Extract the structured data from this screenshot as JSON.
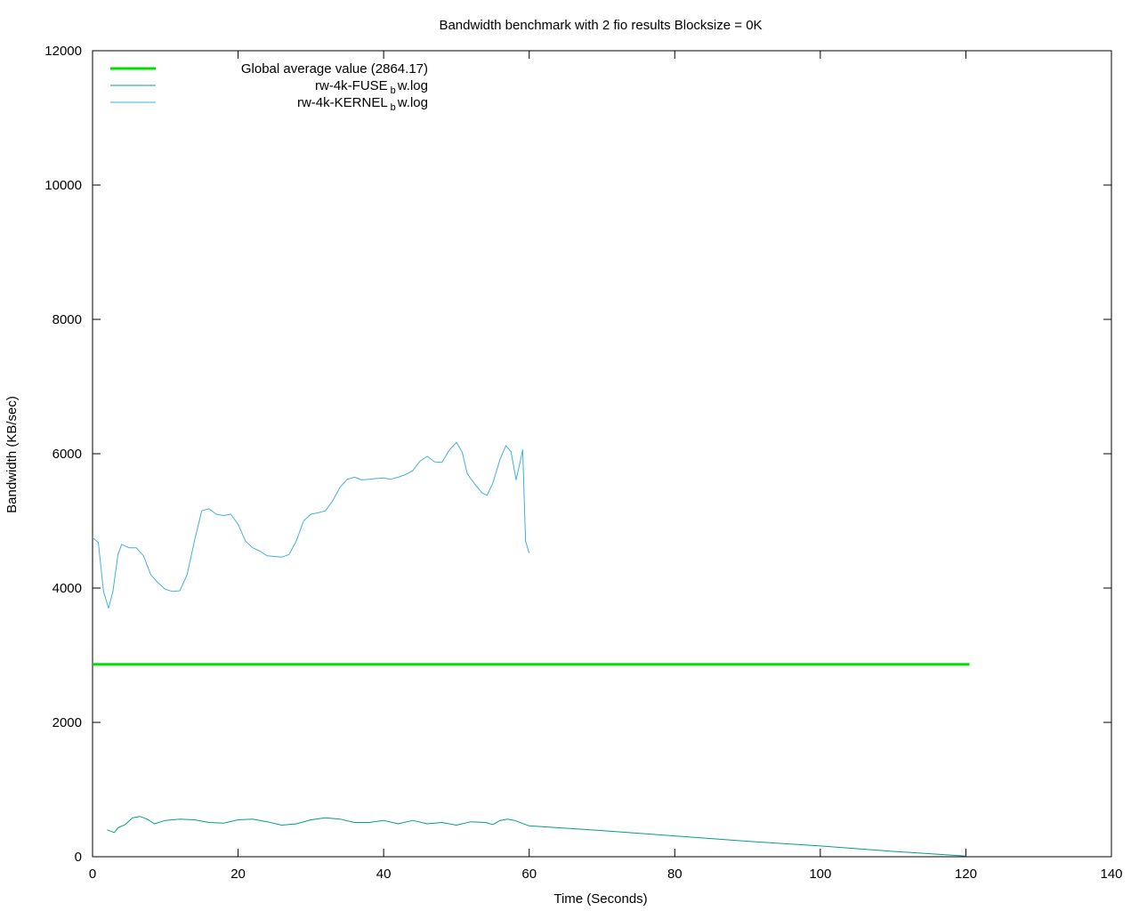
{
  "chart_data": {
    "type": "line",
    "title": "Bandwidth benchmark with 2 fio results Blocksize = 0K",
    "xlabel": "Time (Seconds)",
    "ylabel": "Bandwidth (KB/sec)",
    "xlim": [
      0,
      140
    ],
    "ylim": [
      0,
      12000
    ],
    "x_ticks": [
      0,
      20,
      40,
      60,
      80,
      100,
      120,
      140
    ],
    "y_ticks": [
      0,
      2000,
      4000,
      6000,
      8000,
      10000,
      12000
    ],
    "grid": false,
    "legend_position": "top-left",
    "series": [
      {
        "name": "Global average value (2864.17)",
        "color": "#00e000",
        "style": "thick",
        "points": [
          [
            0,
            2864.17
          ],
          [
            120.5,
            2864.17
          ]
        ]
      },
      {
        "name_parts": [
          "rw-4k-FUSE",
          "b",
          "w.log"
        ],
        "color": "#00a080",
        "style": "thin",
        "points": [
          [
            2,
            400
          ],
          [
            3,
            360
          ],
          [
            3.5,
            430
          ],
          [
            4.5,
            480
          ],
          [
            5.5,
            580
          ],
          [
            6.5,
            600
          ],
          [
            7.5,
            560
          ],
          [
            8.5,
            490
          ],
          [
            10,
            540
          ],
          [
            12,
            560
          ],
          [
            14,
            550
          ],
          [
            16,
            510
          ],
          [
            18,
            500
          ],
          [
            20,
            550
          ],
          [
            22,
            560
          ],
          [
            24,
            520
          ],
          [
            26,
            470
          ],
          [
            28,
            490
          ],
          [
            30,
            550
          ],
          [
            32,
            580
          ],
          [
            34,
            560
          ],
          [
            36,
            510
          ],
          [
            38,
            510
          ],
          [
            40,
            540
          ],
          [
            42,
            490
          ],
          [
            44,
            540
          ],
          [
            46,
            490
          ],
          [
            48,
            510
          ],
          [
            50,
            470
          ],
          [
            52,
            520
          ],
          [
            54,
            510
          ],
          [
            55,
            480
          ],
          [
            56,
            540
          ],
          [
            57,
            560
          ],
          [
            58,
            540
          ],
          [
            59,
            500
          ],
          [
            60,
            460
          ],
          [
            70,
            390
          ],
          [
            80,
            310
          ],
          [
            90,
            230
          ],
          [
            100,
            160
          ],
          [
            110,
            80
          ],
          [
            120,
            10
          ]
        ]
      },
      {
        "name_parts": [
          "rw-4k-KERNEL",
          "b",
          "w.log"
        ],
        "color": "#40b0e0",
        "style": "thin",
        "points": [
          [
            0,
            4750
          ],
          [
            0.8,
            4680
          ],
          [
            1.5,
            3950
          ],
          [
            2.2,
            3700
          ],
          [
            2.8,
            3950
          ],
          [
            3.5,
            4500
          ],
          [
            4,
            4650
          ],
          [
            5,
            4600
          ],
          [
            6,
            4600
          ],
          [
            7,
            4480
          ],
          [
            8,
            4200
          ],
          [
            9,
            4080
          ],
          [
            10,
            3980
          ],
          [
            11,
            3950
          ],
          [
            12,
            3960
          ],
          [
            13,
            4200
          ],
          [
            14,
            4700
          ],
          [
            15,
            5150
          ],
          [
            16,
            5180
          ],
          [
            17,
            5100
          ],
          [
            18,
            5080
          ],
          [
            19,
            5100
          ],
          [
            20,
            4950
          ],
          [
            21,
            4700
          ],
          [
            22,
            4600
          ],
          [
            23,
            4550
          ],
          [
            24,
            4480
          ],
          [
            25,
            4470
          ],
          [
            26,
            4460
          ],
          [
            27,
            4500
          ],
          [
            28,
            4700
          ],
          [
            29,
            5000
          ],
          [
            30,
            5100
          ],
          [
            31,
            5120
          ],
          [
            32,
            5150
          ],
          [
            33,
            5300
          ],
          [
            34,
            5500
          ],
          [
            35,
            5620
          ],
          [
            36,
            5650
          ],
          [
            37,
            5610
          ],
          [
            38,
            5620
          ],
          [
            39,
            5630
          ],
          [
            40,
            5640
          ],
          [
            41,
            5620
          ],
          [
            42,
            5650
          ],
          [
            43,
            5690
          ],
          [
            44,
            5750
          ],
          [
            45,
            5890
          ],
          [
            46,
            5960
          ],
          [
            47,
            5880
          ],
          [
            48,
            5870
          ],
          [
            49,
            6050
          ],
          [
            50,
            6170
          ],
          [
            50.8,
            6020
          ],
          [
            51.5,
            5700
          ],
          [
            52.5,
            5550
          ],
          [
            53.5,
            5420
          ],
          [
            54.2,
            5380
          ],
          [
            55,
            5560
          ],
          [
            56,
            5920
          ],
          [
            56.8,
            6120
          ],
          [
            57.5,
            6030
          ],
          [
            58.2,
            5610
          ],
          [
            58.8,
            5900
          ],
          [
            59.1,
            6060
          ],
          [
            59.5,
            4700
          ],
          [
            60,
            4520
          ]
        ]
      }
    ]
  }
}
